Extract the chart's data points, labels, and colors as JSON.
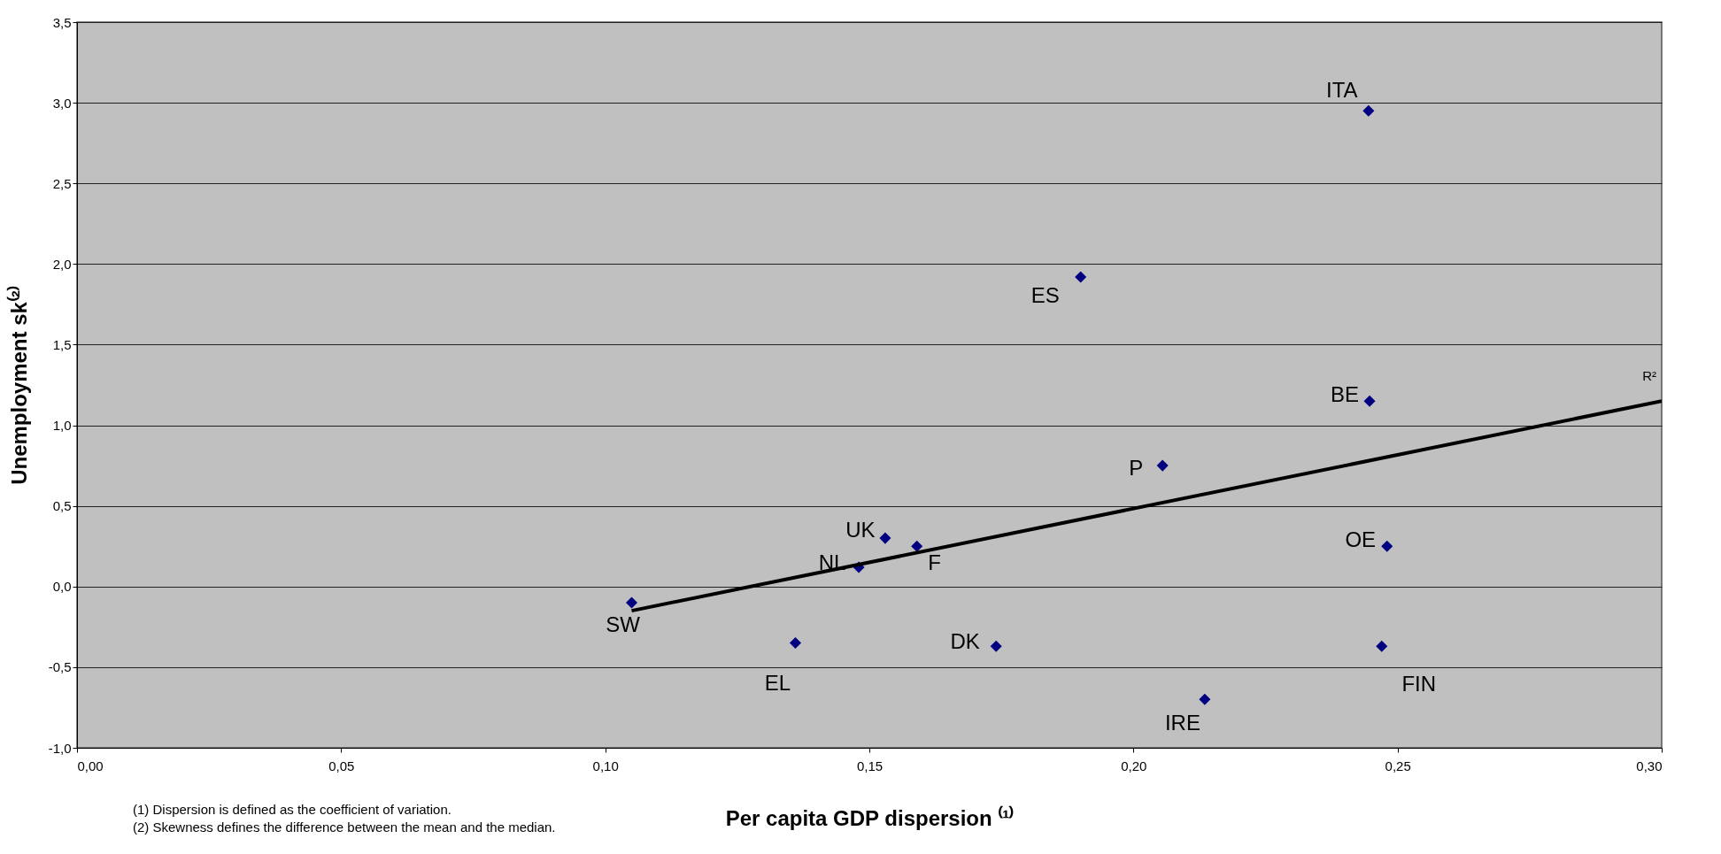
{
  "chart_data": {
    "type": "scatter",
    "xlabel": "Per capita GDP dispersion ⁽¹⁾",
    "ylabel": "Unemployment sk⁽²⁾",
    "series": [
      {
        "color": "#000080",
        "marker": "diamond",
        "x": [
          0.2445,
          0.19,
          0.2447,
          0.2055,
          0.248,
          0.153,
          0.159,
          0.148,
          0.105,
          0.136,
          0.174,
          0.247,
          0.2135
        ],
        "values": [
          2.95,
          1.92,
          1.15,
          0.75,
          0.25,
          0.3,
          0.25,
          0.12,
          -0.1,
          -0.35,
          -0.37,
          -0.37,
          -0.7
        ]
      },
      {
        "type": "line",
        "color": "#000000",
        "line_style": "solid",
        "marker": "none",
        "x": [
          0.105,
          0.3
        ],
        "values": [
          -0.15,
          1.15
        ]
      }
    ],
    "xlim": [
      0,
      0.3
    ],
    "ylim": [
      -1.0,
      3.5
    ],
    "xticks": [
      {
        "value": 0,
        "label": "0,00"
      },
      {
        "value": 0.05,
        "label": "0,05"
      },
      {
        "value": 0.1,
        "label": "0,10"
      },
      {
        "value": 0.15,
        "label": "0,15"
      },
      {
        "value": 0.2,
        "label": "0,20"
      },
      {
        "value": 0.25,
        "label": "0,25"
      },
      {
        "value": 0.3,
        "label": "0,30"
      }
    ],
    "yticks": [
      {
        "value": -1.0,
        "label": "-1,0"
      },
      {
        "value": -0.5,
        "label": "-0,5"
      },
      {
        "value": 0,
        "label": "0,0"
      },
      {
        "value": 0.5,
        "label": "0,5"
      },
      {
        "value": 1.0,
        "label": "1,0"
      },
      {
        "value": 1.5,
        "label": "1,5"
      },
      {
        "value": 2.0,
        "label": "2,0"
      },
      {
        "value": 2.5,
        "label": "2,5"
      },
      {
        "value": 3.0,
        "label": "3,0"
      },
      {
        "value": 3.5,
        "label": "3,5"
      }
    ],
    "grid": "y",
    "legend": false,
    "annotations": [
      {
        "text": "ITA",
        "x": 0.2445,
        "y": 2.95
      },
      {
        "text": "ES",
        "x": 0.19,
        "y": 1.92
      },
      {
        "text": "BE",
        "x": 0.2447,
        "y": 1.15
      },
      {
        "text": "P",
        "x": 0.2055,
        "y": 0.75
      },
      {
        "text": "OE",
        "x": 0.248,
        "y": 0.25
      },
      {
        "text": "UK",
        "x": 0.153,
        "y": 0.3
      },
      {
        "text": "F",
        "x": 0.159,
        "y": 0.25
      },
      {
        "text": "NL",
        "x": 0.148,
        "y": 0.12
      },
      {
        "text": "SW",
        "x": 0.105,
        "y": -0.1
      },
      {
        "text": "EL",
        "x": 0.136,
        "y": -0.35
      },
      {
        "text": "DK",
        "x": 0.174,
        "y": -0.37
      },
      {
        "text": "FIN",
        "x": 0.247,
        "y": -0.37
      },
      {
        "text": "IRE",
        "x": 0.2135,
        "y": -0.7
      },
      "R²",
      "(1) Dispersion is defined as the coefficient of variation.",
      "(2) Skewness defines the difference between the mean and the median."
    ]
  }
}
